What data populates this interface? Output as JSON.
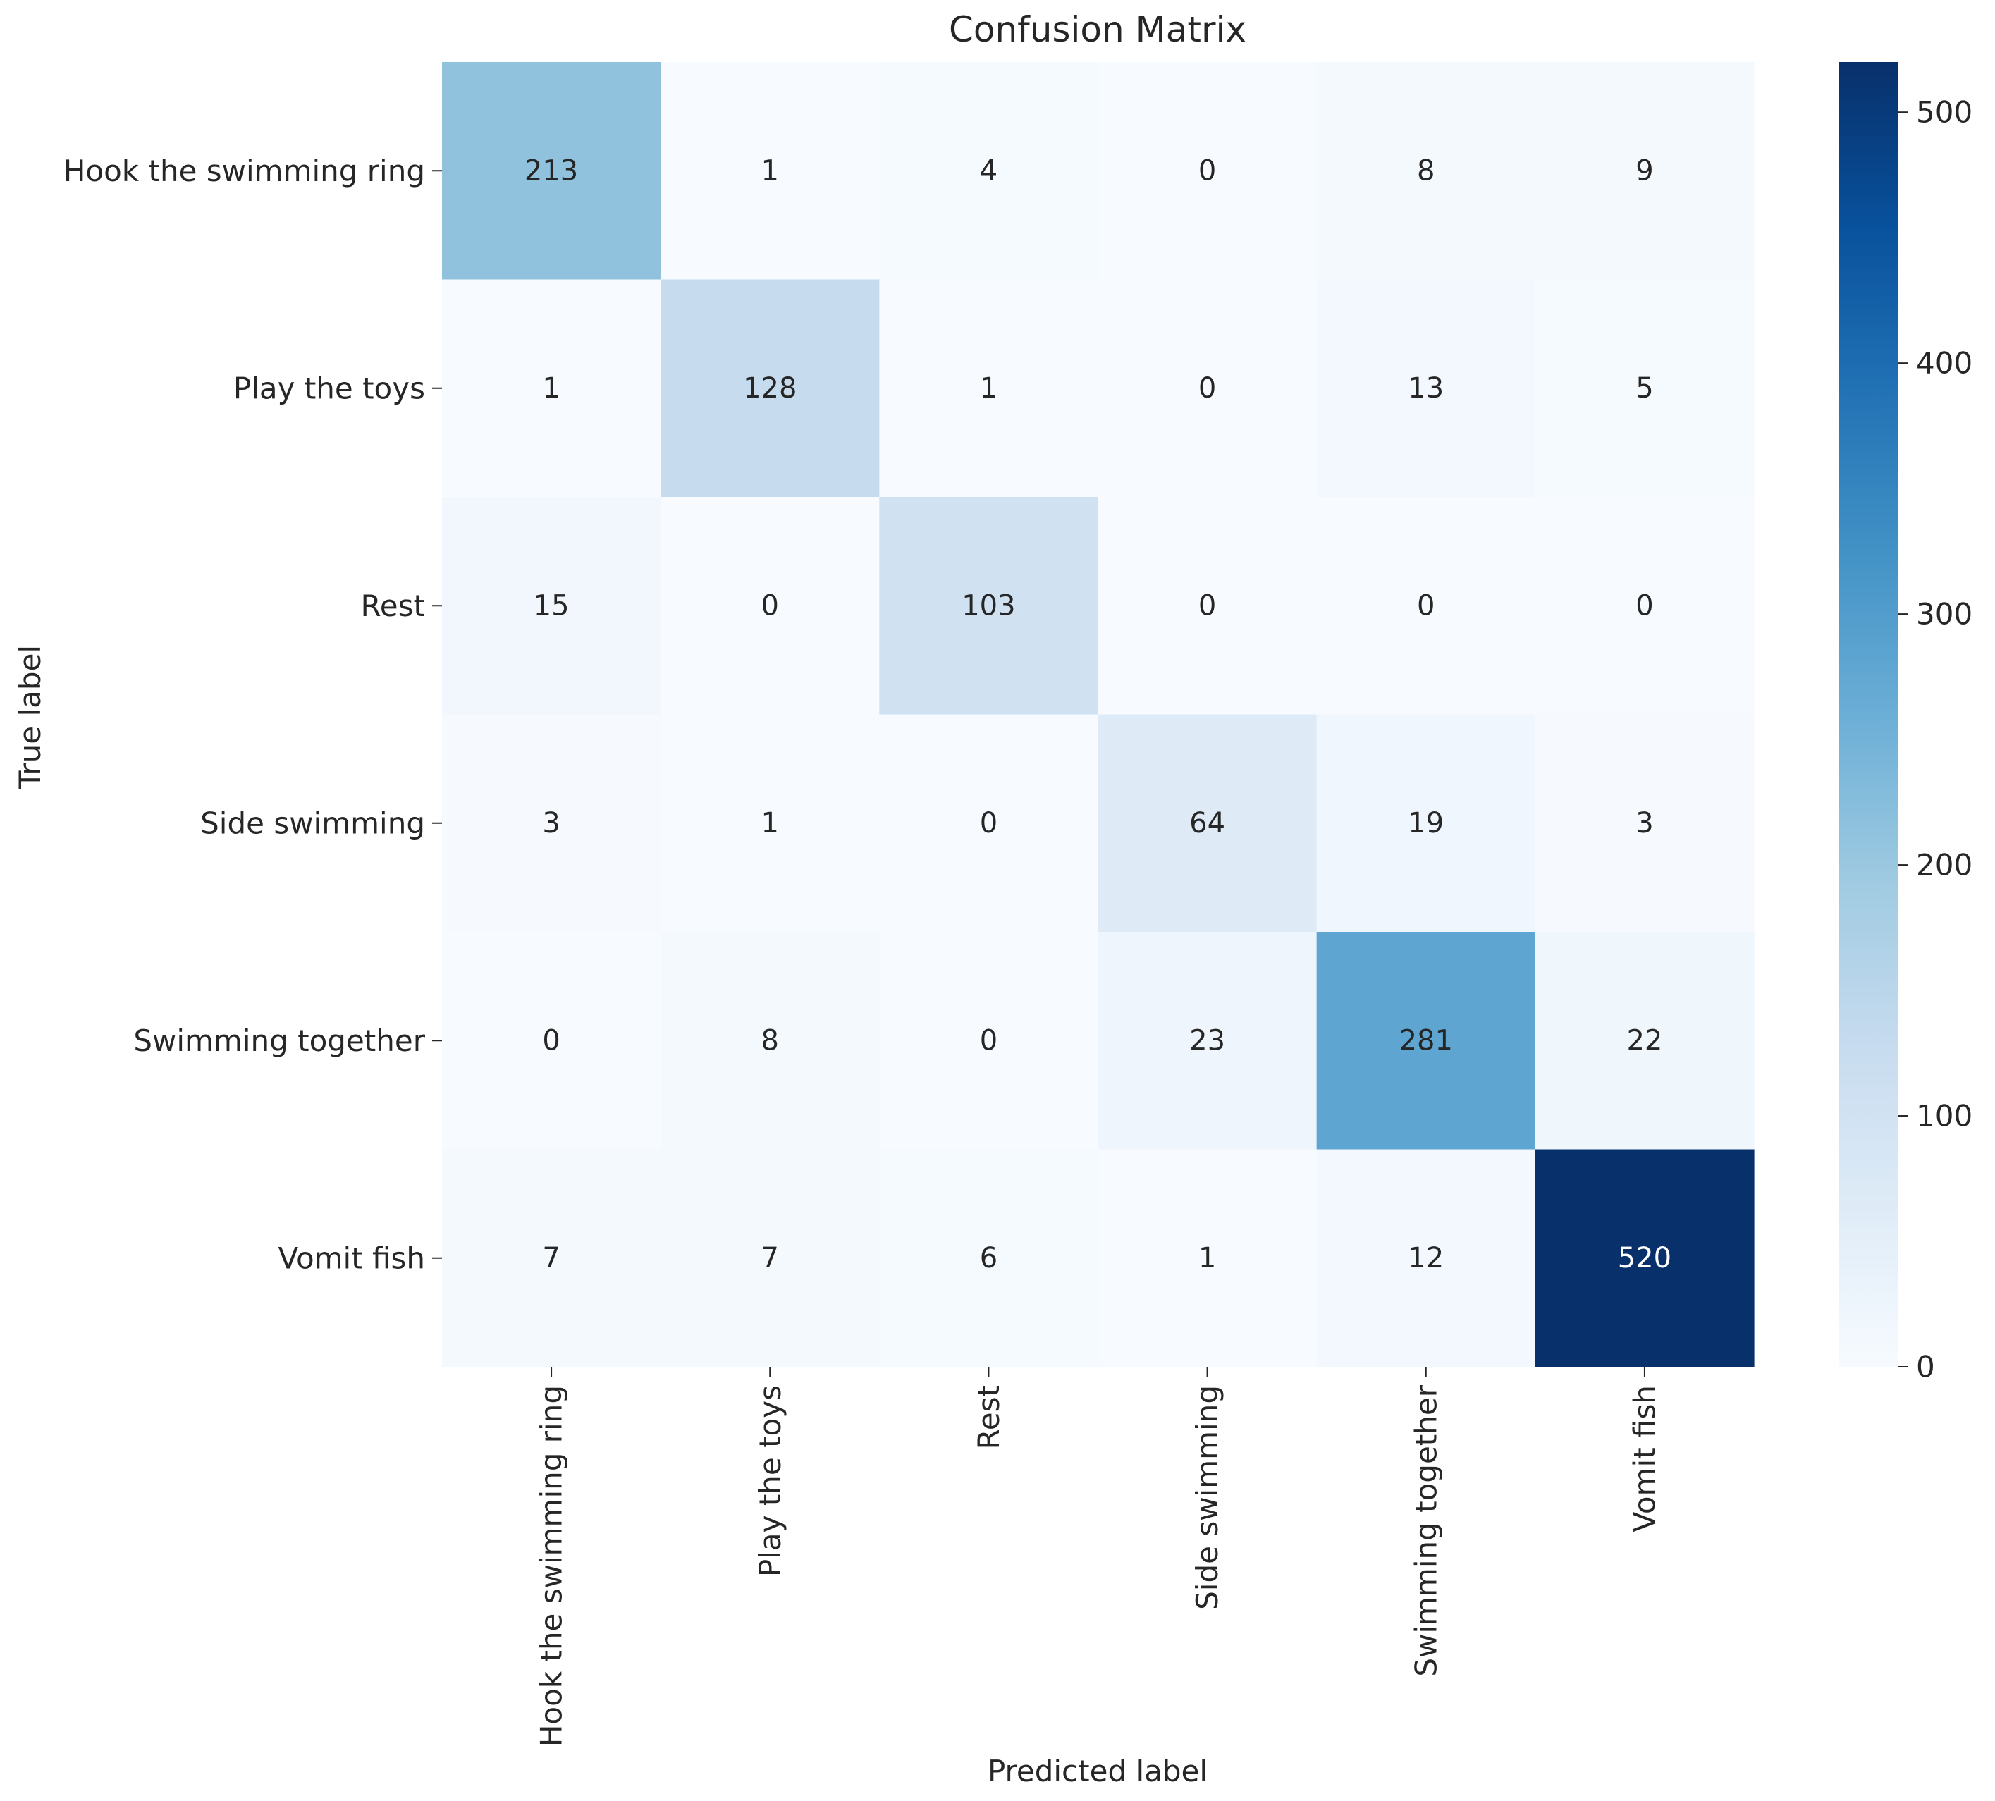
{
  "chart_data": {
    "type": "heatmap",
    "title": "Confusion Matrix",
    "xlabel": "Predicted label",
    "ylabel": "True label",
    "x_categories": [
      "Hook the swimming ring",
      "Play the toys",
      "Rest",
      "Side swimming",
      "Swimming together",
      "Vomit fish"
    ],
    "y_categories": [
      "Hook the swimming ring",
      "Play the toys",
      "Rest",
      "Side swimming",
      "Swimming together",
      "Vomit fish"
    ],
    "values": [
      [
        213,
        1,
        4,
        0,
        8,
        9
      ],
      [
        1,
        128,
        1,
        0,
        13,
        5
      ],
      [
        15,
        0,
        103,
        0,
        0,
        0
      ],
      [
        3,
        1,
        0,
        64,
        19,
        3
      ],
      [
        0,
        8,
        0,
        23,
        281,
        22
      ],
      [
        7,
        7,
        6,
        1,
        12,
        520
      ]
    ],
    "colormap": "Blues",
    "value_range": [
      0,
      520
    ],
    "colorbar": {
      "ticks": [
        0,
        100,
        200,
        300,
        400,
        500
      ],
      "tick_labels": [
        "0",
        "100",
        "200",
        "300",
        "400",
        "500"
      ]
    }
  }
}
